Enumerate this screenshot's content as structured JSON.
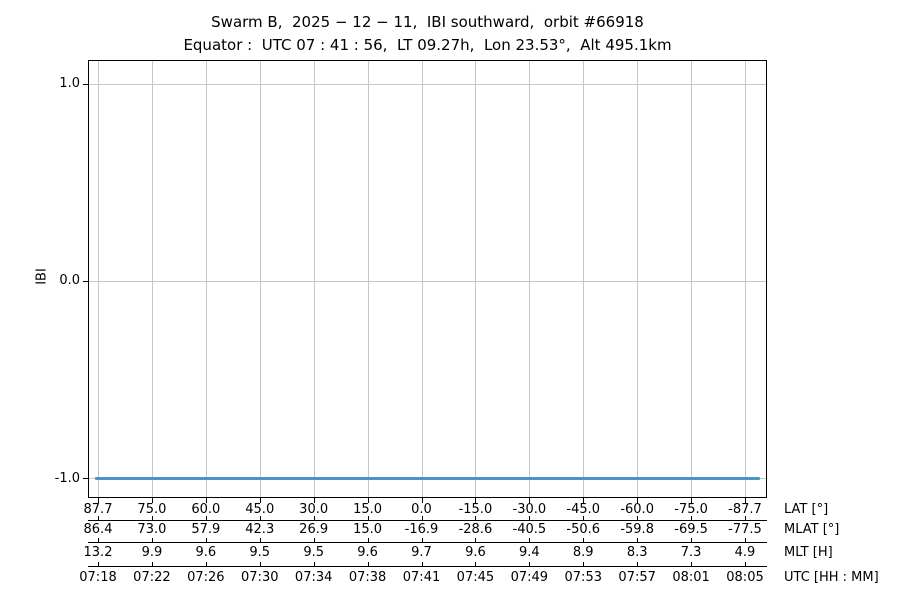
{
  "title": "Swarm B,  2025 − 12 − 11,  IBI southward,  orbit #66918",
  "subtitle": "Equator :  UTC 07 : 41 : 56,  LT 09.27h,  Lon 23.53°,  Alt 495.1km",
  "chart_data": {
    "type": "line",
    "title": "Swarm B,  2025 − 12 − 11,  IBI southward,  orbit #66918",
    "subtitle": "Equator :  UTC 07 : 41 : 56,  LT 09.27h,  Lon 23.53°,  Alt 495.1km",
    "ylabel": "IBI",
    "yticks": [
      1.0,
      0.0,
      -1.0
    ],
    "ytick_labels": [
      "1.0",
      "0.0",
      "-1.0"
    ],
    "ylim": [
      -1.1,
      1.12
    ],
    "grid": true,
    "legend": "none",
    "series": [
      {
        "name": "IBI",
        "color": "#4b95c8",
        "constant_value": -1.0,
        "note": "flat line at IBI = -1.0 spanning the full time range"
      }
    ],
    "x_axes": [
      {
        "label": "LAT [°]",
        "ticks": [
          "87.7",
          "75.0",
          "60.0",
          "45.0",
          "30.0",
          "15.0",
          "0.0",
          "-15.0",
          "-30.0",
          "-45.0",
          "-60.0",
          "-75.0",
          "-87.7"
        ]
      },
      {
        "label": "MLAT [°]",
        "ticks": [
          "86.4",
          "73.0",
          "57.9",
          "42.3",
          "26.9",
          "15.0",
          "-16.9",
          "-28.6",
          "-40.5",
          "-50.6",
          "-59.8",
          "-69.5",
          "-77.5"
        ]
      },
      {
        "label": "MLT [H]",
        "ticks": [
          "13.2",
          "9.9",
          "9.6",
          "9.5",
          "9.5",
          "9.6",
          "9.7",
          "9.6",
          "9.4",
          "8.9",
          "8.3",
          "7.3",
          "4.9"
        ]
      },
      {
        "label": "UTC [HH : MM]",
        "ticks": [
          "07:18",
          "07:22",
          "07:26",
          "07:30",
          "07:34",
          "07:38",
          "07:41",
          "07:45",
          "07:49",
          "07:53",
          "07:57",
          "08:01",
          "08:05"
        ]
      }
    ],
    "colors": {
      "line": "#4b95c8",
      "grid": "#c6c6c6",
      "axis": "#000000",
      "text": "#000000",
      "background": "#ffffff"
    }
  }
}
